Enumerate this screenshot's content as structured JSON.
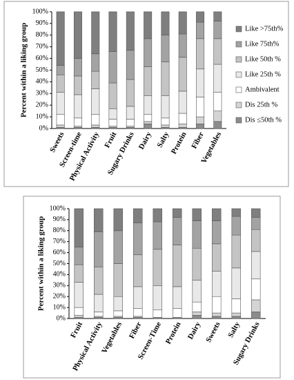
{
  "chart_data": [
    {
      "type": "stacked-bar",
      "y_label": "Percent within a liking group",
      "legend": "right",
      "categories": [
        "Sweets",
        "Screen-time",
        "Physical Activity",
        "Fruit",
        "Sugary Drinks",
        "Dairy",
        "Salty",
        "Protein",
        "Fiber",
        "Vegetables"
      ],
      "series": [
        {
          "name": "Dis ≤50th %",
          "color": "#8c8c8c",
          "values": [
            1,
            1,
            1,
            1,
            1,
            4,
            1,
            1,
            4,
            6
          ]
        },
        {
          "name": "Dis 25th %",
          "color": "#d4d4d4",
          "values": [
            2,
            1,
            2,
            1,
            1,
            2,
            2,
            3,
            6,
            9
          ]
        },
        {
          "name": "Ambivalent",
          "color": "#ffffff",
          "values": [
            9,
            7,
            9,
            6,
            6,
            6,
            6,
            9,
            17,
            16
          ]
        },
        {
          "name": "Like 25th %",
          "color": "#e8e8e8",
          "values": [
            19,
            20,
            22,
            9,
            11,
            16,
            19,
            19,
            24,
            24
          ]
        },
        {
          "name": "Like 50th %",
          "color": "#c4c4c4",
          "values": [
            15,
            16,
            15,
            22,
            23,
            25,
            29,
            29,
            26,
            22
          ]
        },
        {
          "name": "Like 75th%",
          "color": "#a3a3a3",
          "values": [
            8,
            15,
            15,
            27,
            25,
            24,
            23,
            20,
            14,
            15
          ]
        },
        {
          "name": "Like >75th%",
          "color": "#7f7f7f",
          "values": [
            46,
            40,
            36,
            34,
            33,
            23,
            20,
            19,
            9,
            8
          ]
        }
      ],
      "ylim": [
        0,
        100
      ],
      "yticks": [
        {
          "value": 0,
          "label": "0%"
        },
        {
          "value": 10,
          "label": "10%"
        },
        {
          "value": 20,
          "label": "20%"
        },
        {
          "value": 30,
          "label": "30%"
        },
        {
          "value": 40,
          "label": "40%"
        },
        {
          "value": 50,
          "label": "50%"
        },
        {
          "value": 60,
          "label": "60%"
        },
        {
          "value": 70,
          "label": "70%"
        },
        {
          "value": 80,
          "label": "80%"
        },
        {
          "value": 90,
          "label": "90%"
        },
        {
          "value": 100,
          "label": "100%"
        }
      ]
    },
    {
      "type": "stacked-bar",
      "y_label": "Percent within a liking group",
      "categories": [
        "Fruit",
        "Physical Activity",
        "Vegetables",
        "Fiber",
        "Screen-Time",
        "Protein",
        "Dairy",
        "Sweets",
        "Salty",
        "Sugary Drinks"
      ],
      "series": [
        {
          "color": "#8c8c8c",
          "values": [
            1,
            1,
            1,
            1,
            1,
            1,
            3,
            2,
            2,
            6
          ]
        },
        {
          "color": "#d4d4d4",
          "values": [
            2,
            1,
            1,
            1,
            0,
            0,
            3,
            3,
            3,
            11
          ]
        },
        {
          "color": "#ffffff",
          "values": [
            7,
            4,
            5,
            7,
            7,
            8,
            9,
            15,
            13,
            19
          ]
        },
        {
          "color": "#e8e8e8",
          "values": [
            23,
            16,
            13,
            20,
            22,
            20,
            20,
            23,
            28,
            25
          ]
        },
        {
          "color": "#c4c4c4",
          "values": [
            16,
            25,
            30,
            29,
            33,
            38,
            29,
            25,
            30,
            20
          ]
        },
        {
          "color": "#a3a3a3",
          "values": [
            16,
            32,
            30,
            29,
            25,
            25,
            25,
            21,
            17,
            11
          ]
        },
        {
          "color": "#7f7f7f",
          "values": [
            35,
            21,
            20,
            13,
            12,
            8,
            11,
            11,
            7,
            8
          ]
        }
      ],
      "ylim": [
        0,
        100
      ],
      "yticks": [
        {
          "value": 0,
          "label": "0%"
        },
        {
          "value": 10,
          "label": "10%"
        },
        {
          "value": 20,
          "label": "20%"
        },
        {
          "value": 30,
          "label": "30%"
        },
        {
          "value": 40,
          "label": "40%"
        },
        {
          "value": 50,
          "label": "50%"
        },
        {
          "value": 60,
          "label": "60%"
        },
        {
          "value": 70,
          "label": "70%"
        },
        {
          "value": 80,
          "label": "80%"
        },
        {
          "value": 90,
          "label": "90%"
        },
        {
          "value": 100,
          "label": "100%"
        }
      ]
    }
  ]
}
